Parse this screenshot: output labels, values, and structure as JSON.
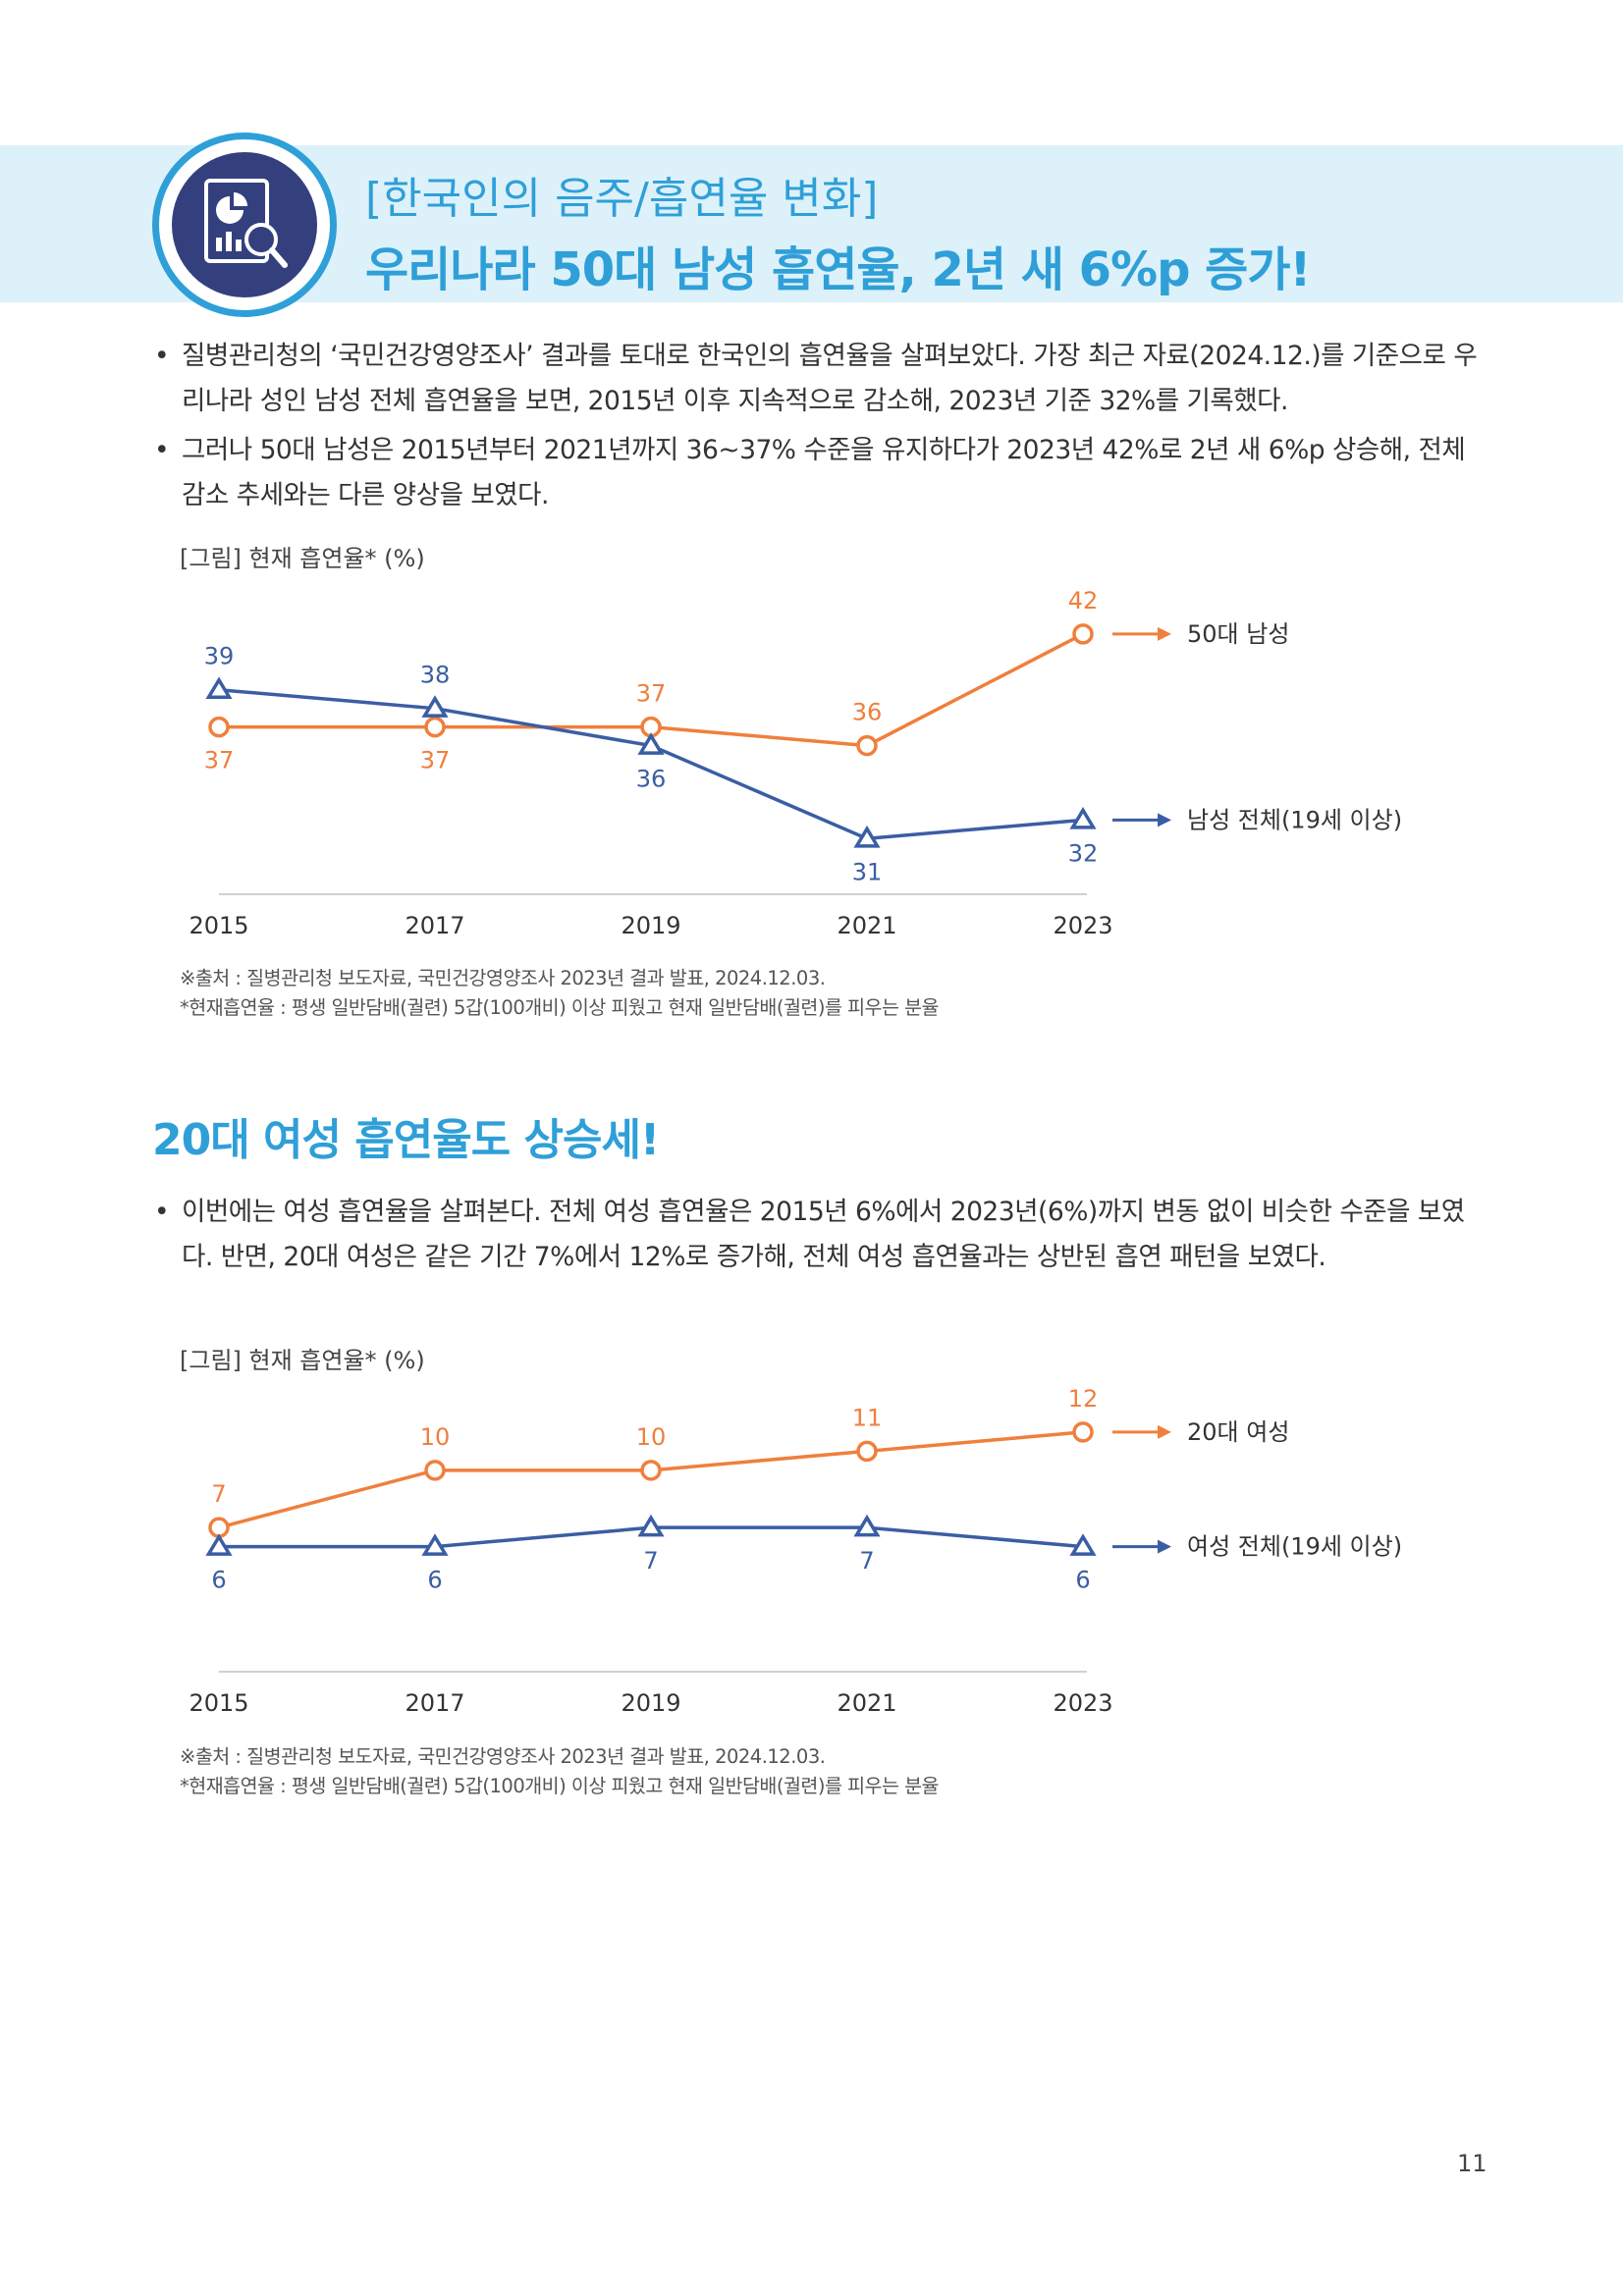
{
  "header": {
    "subtitle": "[한국인의 음주/흡연율 변화]",
    "title": "우리나라 50대 남성 흡연율, 2년 새 6%p 증가!",
    "icon": "chart-magnifier-icon"
  },
  "section1": {
    "bullets": [
      "질병관리청의 ‘국민건강영양조사’ 결과를 토대로 한국인의 흡연율을 살펴보았다. 가장 최근 자료(2024.12.)를 기준으로 우리나라 성인 남성 전체 흡연율을 보면, 2015년 이후 지속적으로 감소해, 2023년 기준 32%를 기록했다.",
      "그러나 50대 남성은 2015년부터 2021년까지 36~37% 수준을 유지하다가 2023년 42%로 2년 새 6%p 상승해, 전체 감소 추세와는 다른 양상을 보였다."
    ],
    "figure_caption": "[그림] 현재 흡연율* (%)",
    "source_note": "※출처 : 질병관리청 보도자료, 국민건강영양조사 2023년 결과 발표, 2024.12.03.",
    "definition_note": "*현재흡연율 : 평생 일반담배(궐련) 5갑(100개비) 이상 피웠고 현재 일반담배(궐련)를 피우는 분율"
  },
  "section2": {
    "title": "20대 여성 흡연율도 상승세!",
    "bullets": [
      "이번에는 여성 흡연율을 살펴본다. 전체 여성 흡연율은 2015년 6%에서 2023년(6%)까지  변동 없이 비슷한 수준을 보였다. 반면, 20대 여성은 같은 기간 7%에서 12%로 증가해, 전체 여성 흡연율과는 상반된 흡연 패턴을 보였다."
    ],
    "figure_caption": "[그림] 현재 흡연율* (%)",
    "source_note": "※출처 : 질병관리청 보도자료, 국민건강영양조사 2023년 결과 발표, 2024.12.03.",
    "definition_note": "*현재흡연율 : 평생 일반담배(궐련) 5갑(100개비) 이상 피웠고 현재 일반담배(궐련)를 피우는 분율"
  },
  "page_number": "11",
  "colors": {
    "accent": "#2f9fd8",
    "orange": "#f07f3c",
    "blue": "#3a5ea4",
    "banner": "#dcf1f9",
    "icon_bg": "#34407e"
  },
  "chart_data": [
    {
      "type": "line",
      "x": [
        "2015",
        "2017",
        "2019",
        "2021",
        "2023"
      ],
      "series": [
        {
          "name": "50대 남성",
          "values": [
            37,
            37,
            37,
            36,
            42
          ],
          "color": "#f07f3c",
          "marker": "circle"
        },
        {
          "name": "남성 전체(19세 이상)",
          "values": [
            39,
            38,
            36,
            31,
            32
          ],
          "color": "#3a5ea4",
          "marker": "triangle"
        }
      ],
      "title": "",
      "xlabel": "",
      "ylabel": "",
      "ylim": [
        25,
        44
      ],
      "grid": false,
      "legend": "right"
    },
    {
      "type": "line",
      "x": [
        "2015",
        "2017",
        "2019",
        "2021",
        "2023"
      ],
      "series": [
        {
          "name": "20대 여성",
          "values": [
            7,
            10,
            10,
            11,
            12
          ],
          "color": "#f07f3c",
          "marker": "circle"
        },
        {
          "name": "여성 전체(19세 이상)",
          "values": [
            6,
            6,
            7,
            7,
            6
          ],
          "color": "#3a5ea4",
          "marker": "triangle"
        }
      ],
      "title": "",
      "xlabel": "",
      "ylabel": "",
      "ylim": [
        3,
        14
      ],
      "grid": false,
      "legend": "right"
    }
  ]
}
